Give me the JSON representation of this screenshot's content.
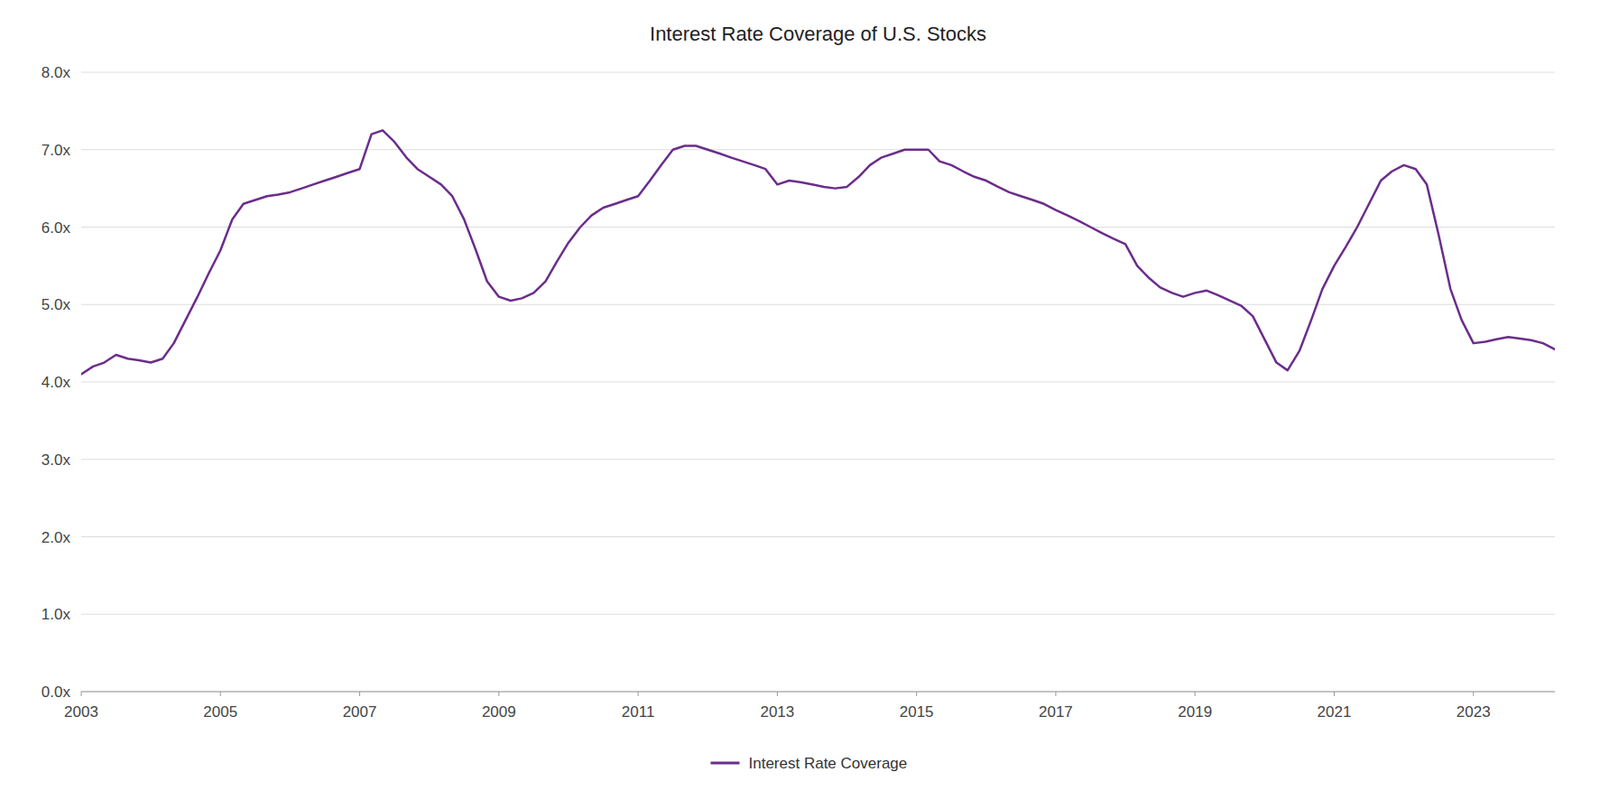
{
  "chart_data": {
    "type": "line",
    "title": "Interest Rate Coverage of U.S. Stocks",
    "x": [
      2003.0,
      2003.17,
      2003.33,
      2003.5,
      2003.67,
      2003.83,
      2004.0,
      2004.17,
      2004.33,
      2004.5,
      2004.67,
      2004.83,
      2005.0,
      2005.17,
      2005.33,
      2005.5,
      2005.67,
      2005.83,
      2006.0,
      2006.17,
      2006.33,
      2006.5,
      2006.67,
      2006.83,
      2007.0,
      2007.17,
      2007.33,
      2007.5,
      2007.67,
      2007.83,
      2008.0,
      2008.17,
      2008.33,
      2008.5,
      2008.67,
      2008.83,
      2009.0,
      2009.17,
      2009.33,
      2009.5,
      2009.67,
      2009.83,
      2010.0,
      2010.17,
      2010.33,
      2010.5,
      2010.67,
      2010.83,
      2011.0,
      2011.17,
      2011.33,
      2011.5,
      2011.67,
      2011.83,
      2012.0,
      2012.17,
      2012.33,
      2012.5,
      2012.67,
      2012.83,
      2013.0,
      2013.17,
      2013.33,
      2013.5,
      2013.67,
      2013.83,
      2014.0,
      2014.17,
      2014.33,
      2014.5,
      2014.67,
      2014.83,
      2015.0,
      2015.17,
      2015.33,
      2015.5,
      2015.67,
      2015.83,
      2016.0,
      2016.17,
      2016.33,
      2016.5,
      2016.67,
      2016.83,
      2017.0,
      2017.17,
      2017.33,
      2017.5,
      2017.67,
      2017.83,
      2018.0,
      2018.17,
      2018.33,
      2018.5,
      2018.67,
      2018.83,
      2019.0,
      2019.17,
      2019.33,
      2019.5,
      2019.67,
      2019.83,
      2020.0,
      2020.17,
      2020.33,
      2020.5,
      2020.67,
      2020.83,
      2021.0,
      2021.17,
      2021.33,
      2021.5,
      2021.67,
      2021.83,
      2022.0,
      2022.17,
      2022.33,
      2022.5,
      2022.67,
      2022.83,
      2023.0,
      2023.17,
      2023.33,
      2023.5,
      2023.67,
      2023.83,
      2024.0,
      2024.17
    ],
    "series": [
      {
        "name": "Interest Rate Coverage",
        "color": "#6B2D8B",
        "values": [
          4.1,
          4.2,
          4.25,
          4.35,
          4.3,
          4.28,
          4.25,
          4.3,
          4.5,
          4.8,
          5.1,
          5.4,
          5.7,
          6.1,
          6.3,
          6.35,
          6.4,
          6.42,
          6.45,
          6.5,
          6.55,
          6.6,
          6.65,
          6.7,
          6.75,
          7.2,
          7.25,
          7.1,
          6.9,
          6.75,
          6.65,
          6.55,
          6.4,
          6.1,
          5.7,
          5.3,
          5.1,
          5.05,
          5.08,
          5.15,
          5.3,
          5.55,
          5.8,
          6.0,
          6.15,
          6.25,
          6.3,
          6.35,
          6.4,
          6.6,
          6.8,
          7.0,
          7.05,
          7.05,
          7.0,
          6.95,
          6.9,
          6.85,
          6.8,
          6.75,
          6.55,
          6.6,
          6.58,
          6.55,
          6.52,
          6.5,
          6.52,
          6.65,
          6.8,
          6.9,
          6.95,
          7.0,
          7.0,
          7.0,
          6.85,
          6.8,
          6.72,
          6.65,
          6.6,
          6.52,
          6.45,
          6.4,
          6.35,
          6.3,
          6.22,
          6.15,
          6.08,
          6.0,
          5.92,
          5.85,
          5.78,
          5.5,
          5.35,
          5.22,
          5.15,
          5.1,
          5.15,
          5.18,
          5.12,
          5.05,
          4.98,
          4.85,
          4.55,
          4.25,
          4.15,
          4.4,
          4.8,
          5.2,
          5.5,
          5.75,
          6.0,
          6.3,
          6.6,
          6.72,
          6.8,
          6.75,
          6.55,
          5.9,
          5.2,
          4.8,
          4.5,
          4.52,
          4.55,
          4.58,
          4.56,
          4.54,
          4.5,
          4.42
        ]
      }
    ],
    "xlim": [
      2003.0,
      2024.17
    ],
    "xticks": [
      2003,
      2005,
      2007,
      2009,
      2011,
      2013,
      2015,
      2017,
      2019,
      2021,
      2023
    ],
    "ylim": [
      0.0,
      8.0
    ],
    "yticks": [
      {
        "value": 0,
        "label": "0.0x"
      },
      {
        "value": 1,
        "label": "1.0x"
      },
      {
        "value": 2,
        "label": "2.0x"
      },
      {
        "value": 3,
        "label": "3.0x"
      },
      {
        "value": 4,
        "label": "4.0x"
      },
      {
        "value": 5,
        "label": "5.0x"
      },
      {
        "value": 6,
        "label": "6.0x"
      },
      {
        "value": 7,
        "label": "7.0x"
      },
      {
        "value": 8,
        "label": "8.0x"
      }
    ],
    "grid": true,
    "legend": "bottom"
  }
}
